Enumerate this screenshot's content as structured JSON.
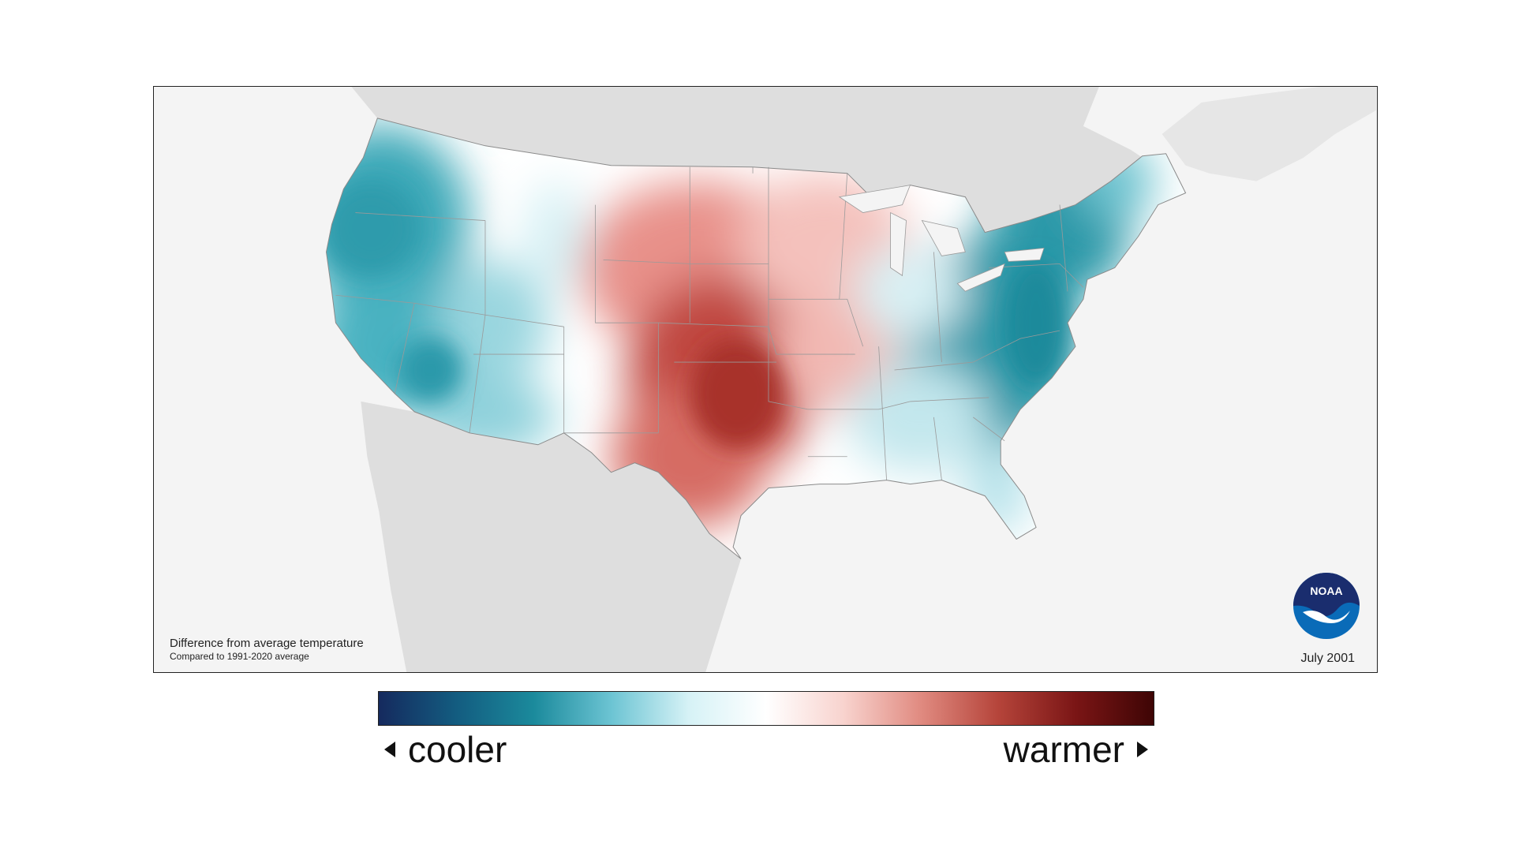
{
  "map": {
    "caption_line1": "Difference from average temperature",
    "caption_line2": "Compared to 1991-2020 average",
    "date": "July 2001",
    "logo_text": "NOAA",
    "colors": {
      "cool_strong": "#1a8a9a",
      "cool_light": "#bfe6ee",
      "neutral": "#ffffff",
      "warm_light": "#f7c9c4",
      "warm_strong": "#b83a32",
      "land_outside": "#dedede",
      "water": "#f4f4f4"
    }
  },
  "legend": {
    "cooler_label": "cooler",
    "warmer_label": "warmer",
    "gradient": [
      "#152a5e",
      "#135c80",
      "#1b8a9c",
      "#6cc4d3",
      "#d6f2f6",
      "#ffffff",
      "#f8d3ce",
      "#e08a80",
      "#b5443a",
      "#7a1515",
      "#3e0505"
    ]
  }
}
